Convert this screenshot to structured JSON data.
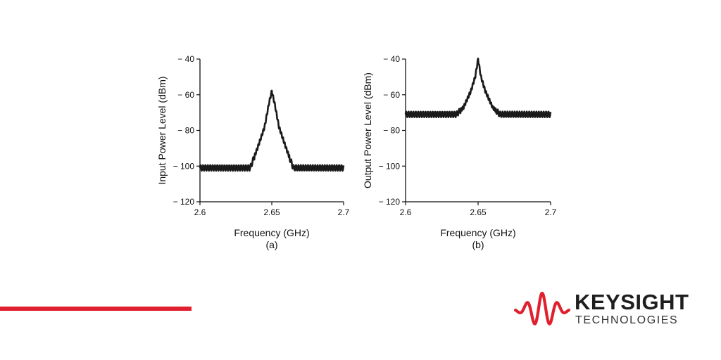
{
  "colors": {
    "accent": "#e0202e",
    "trace": "#1a1a1a",
    "logo_text": "#1e1e1e"
  },
  "chart_data": [
    {
      "type": "line",
      "panel_label": "(a)",
      "xlabel": "Frequency (GHz)",
      "ylabel": "Input Power Level (dBm)",
      "xlim": [
        2.6,
        2.7
      ],
      "ylim": [
        -120,
        -40
      ],
      "x_ticks": [
        "2.6",
        "2.65",
        "2.7"
      ],
      "y_ticks": [
        "− 40",
        "− 60",
        "− 80",
        "− 100",
        "− 120"
      ],
      "noise_floor": -101,
      "series": [
        {
          "x": [
            2.6,
            2.62,
            2.635,
            2.64,
            2.645,
            2.648,
            2.65,
            2.652,
            2.655,
            2.66,
            2.665,
            2.68,
            2.7
          ],
          "y": [
            -101,
            -101,
            -101,
            -90,
            -78,
            -65,
            -58,
            -65,
            -78,
            -90,
            -101,
            -101,
            -101
          ]
        }
      ]
    },
    {
      "type": "line",
      "panel_label": "(b)",
      "xlabel": "Frequency (GHz)",
      "ylabel": "Output Power Level (dBm)",
      "xlim": [
        2.6,
        2.7
      ],
      "ylim": [
        -120,
        -40
      ],
      "x_ticks": [
        "2.6",
        "2.65",
        "2.7"
      ],
      "y_ticks": [
        "− 40",
        "− 60",
        "− 80",
        "− 100",
        "− 120"
      ],
      "noise_floor": -71,
      "series": [
        {
          "x": [
            2.6,
            2.62,
            2.635,
            2.64,
            2.645,
            2.648,
            2.65,
            2.652,
            2.655,
            2.66,
            2.665,
            2.68,
            2.7
          ],
          "y": [
            -71,
            -71,
            -71,
            -67,
            -58,
            -50,
            -40,
            -50,
            -58,
            -67,
            -71,
            -71,
            -71
          ]
        }
      ]
    }
  ],
  "logo": {
    "name": "KEYSIGHT",
    "tagline": "TECHNOLOGIES"
  }
}
